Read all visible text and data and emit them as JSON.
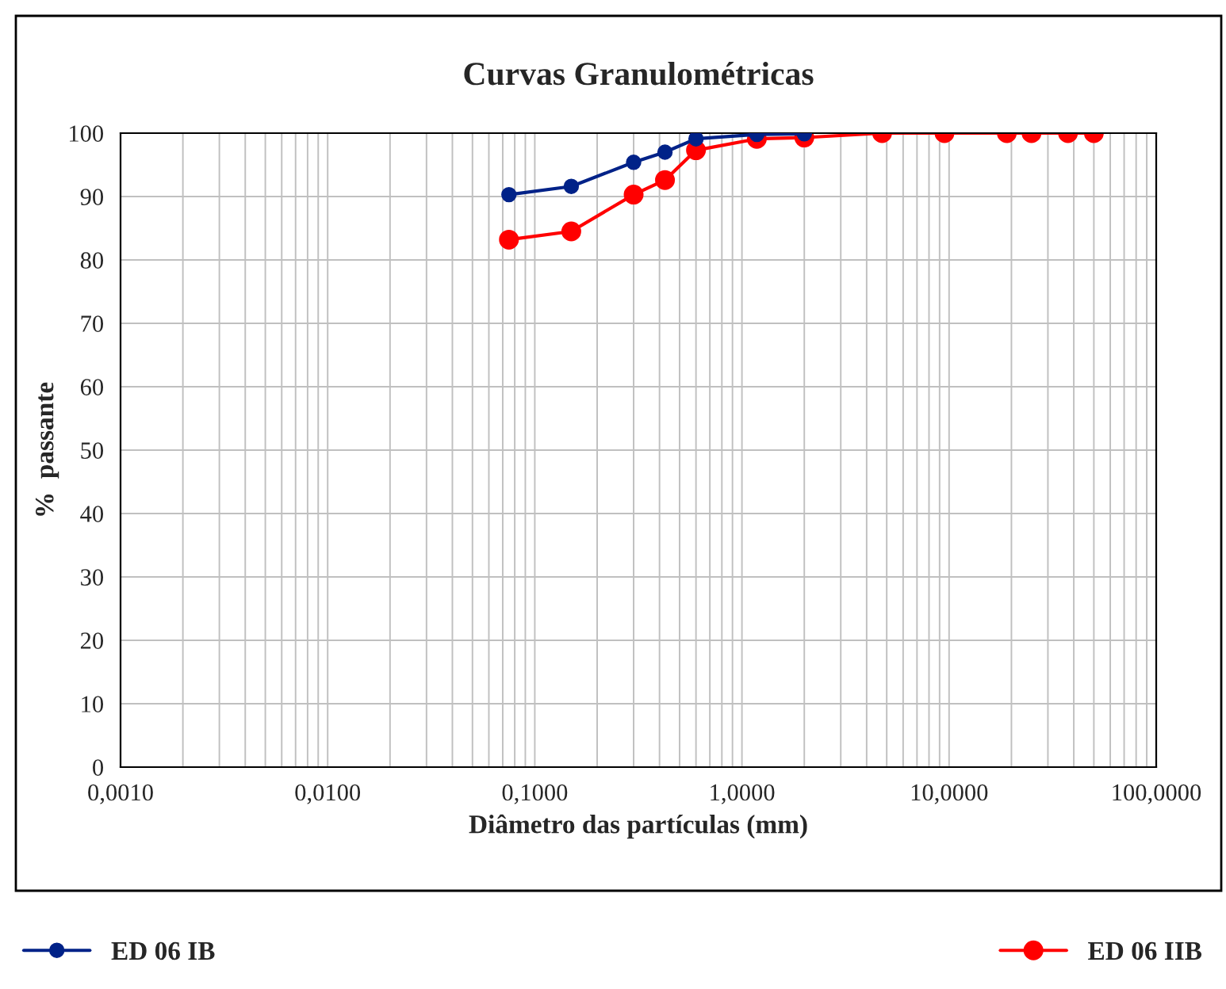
{
  "chart_data": {
    "type": "line",
    "title": "Curvas Granulométricas",
    "xlabel": "Diâmetro das partículas (mm)",
    "ylabel": "%  passante",
    "series": [
      {
        "name": "ED 06 IB",
        "color": "#002288",
        "x": [
          0.075,
          0.15,
          0.3,
          0.425,
          0.6,
          1.18,
          2.0
        ],
        "values": [
          90.3,
          91.6,
          95.4,
          97.0,
          99.1,
          99.8,
          99.9
        ]
      },
      {
        "name": "ED 06 IIB",
        "color": "#ff0000",
        "x": [
          0.075,
          0.15,
          0.3,
          0.425,
          0.6,
          1.18,
          2.0,
          4.75,
          9.5,
          19,
          25,
          37.5,
          50
        ],
        "values": [
          83.2,
          84.5,
          90.3,
          92.6,
          97.3,
          99.1,
          99.3,
          100,
          100,
          100,
          100,
          100,
          100
        ]
      }
    ],
    "log": "x",
    "xlim": [
      0.001,
      100
    ],
    "xticks": [
      {
        "value": 0.001,
        "label": "0,0010"
      },
      {
        "value": 0.01,
        "label": "0,0100"
      },
      {
        "value": 0.1,
        "label": "0,1000"
      },
      {
        "value": 1,
        "label": "1,0000"
      },
      {
        "value": 10,
        "label": "10,0000"
      },
      {
        "value": 100,
        "label": "100,0000"
      }
    ],
    "ylim": [
      0,
      100
    ],
    "yticks": [
      0,
      10,
      20,
      30,
      40,
      50,
      60,
      70,
      80,
      90,
      100
    ],
    "grid": true,
    "legend": "bottom",
    "marker": "circle",
    "line_style": "solid"
  }
}
